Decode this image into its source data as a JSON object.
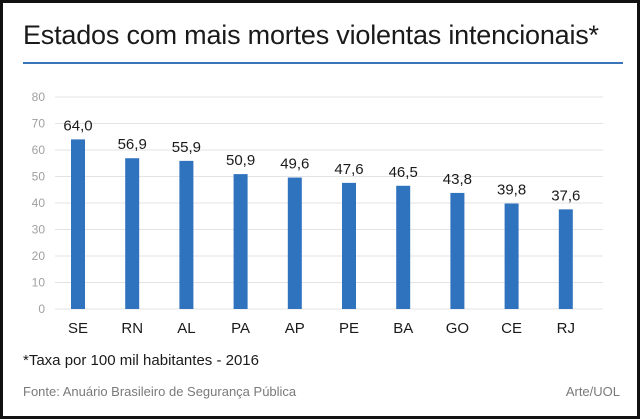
{
  "header": {
    "title": "Estados com mais mortes violentas intencionais*"
  },
  "chart_data": {
    "type": "bar",
    "categories": [
      "SE",
      "RN",
      "AL",
      "PA",
      "AP",
      "PE",
      "BA",
      "GO",
      "CE",
      "RJ"
    ],
    "values": [
      64.0,
      56.9,
      55.9,
      50.9,
      49.6,
      47.6,
      46.5,
      43.8,
      39.8,
      37.6
    ],
    "value_labels": [
      "64,0",
      "56,9",
      "55,9",
      "50,9",
      "49,6",
      "47,6",
      "46,5",
      "43,8",
      "39,8",
      "37,6"
    ],
    "title": "Estados com mais mortes violentas intencionais*",
    "xlabel": "",
    "ylabel": "",
    "ylim": [
      0,
      80
    ],
    "yticks": [
      0,
      10,
      20,
      30,
      40,
      50,
      60,
      70,
      80
    ],
    "grid": true,
    "legend": "none",
    "bar_color": "#2f73be",
    "grid_color": "#e3e3e3"
  },
  "footer": {
    "note": "*Taxa por 100 mil habitantes - 2016",
    "source": "Fonte: Anuário Brasileiro de Segurança Pública",
    "credit": "Arte/UOL"
  },
  "colors": {
    "accent_rule": "#3a74b8"
  }
}
